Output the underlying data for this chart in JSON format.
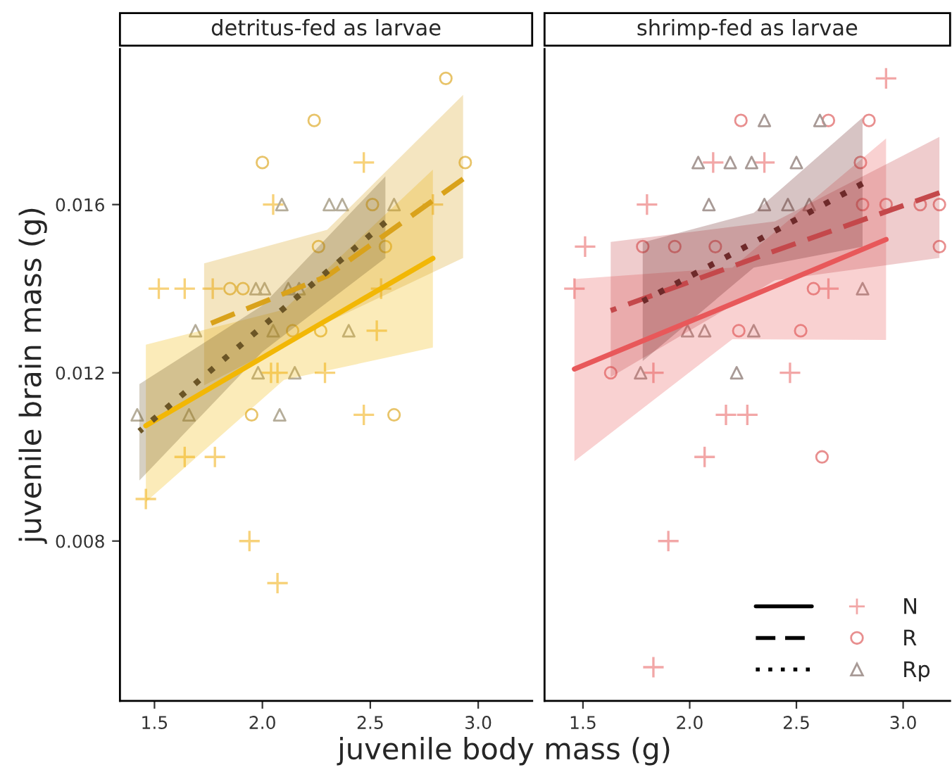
{
  "chart_data": [
    {
      "type": "scatter",
      "title": "detritus-fed as larvae",
      "xlabel": "juvenile body mass (g)",
      "ylabel": "juvenile brain mass (g)",
      "xlim": [
        1.34,
        3.25
      ],
      "ylim": [
        0.0042,
        0.0197
      ],
      "xticks": [
        {
          "value": 1.5,
          "label": "1.5"
        },
        {
          "value": 2.0,
          "label": "2.0"
        },
        {
          "value": 2.5,
          "label": "2.5"
        },
        {
          "value": 3.0,
          "label": "3.0"
        }
      ],
      "yticks": [
        0.008,
        0.012,
        0.016
      ],
      "grid": false,
      "series": [
        {
          "type": "scatter",
          "marker": "cross",
          "color": "#f7d27a",
          "x": [
            2.47,
            2.05,
            1.52,
            1.64,
            1.77,
            2.55,
            2.79,
            2.53,
            2.04,
            2.07,
            2.29,
            2.47,
            1.64,
            1.78,
            1.46,
            1.94,
            2.07
          ],
          "values": [
            0.017,
            0.016,
            0.014,
            0.014,
            0.014,
            0.014,
            0.016,
            0.013,
            0.012,
            0.012,
            0.012,
            0.011,
            0.01,
            0.01,
            0.009,
            0.008,
            0.007
          ]
        },
        {
          "type": "scatter",
          "marker": "circle",
          "color": "#e8c46a",
          "x": [
            2.85,
            2.24,
            2.0,
            2.94,
            2.26,
            1.85,
            1.91,
            2.14,
            2.27,
            2.51,
            2.57,
            1.95,
            2.61
          ],
          "values": [
            0.019,
            0.018,
            0.017,
            0.017,
            0.015,
            0.014,
            0.014,
            0.013,
            0.013,
            0.016,
            0.015,
            0.011,
            0.011
          ]
        },
        {
          "type": "scatter",
          "marker": "triangle",
          "color": "#b5ad9a",
          "x": [
            2.09,
            2.31,
            2.37,
            2.61,
            1.97,
            2.01,
            2.12,
            2.17,
            1.69,
            2.05,
            2.4,
            1.98,
            2.15,
            1.42,
            1.66,
            2.08
          ],
          "values": [
            0.016,
            0.016,
            0.016,
            0.016,
            0.014,
            0.014,
            0.014,
            0.014,
            0.013,
            0.013,
            0.013,
            0.012,
            0.012,
            0.011,
            0.011,
            0.011
          ]
        },
        {
          "type": "line",
          "line_style": "solid",
          "color": "#f2b705",
          "x": [
            1.46,
            2.1,
            2.79
          ],
          "values": [
            0.01074,
            0.01266,
            0.01472
          ],
          "lower": [
            0.00893,
            0.01183,
            0.0126
          ],
          "upper": [
            0.01267,
            0.0135,
            0.01683
          ]
        },
        {
          "type": "line",
          "line_style": "dashed",
          "color": "#d9a21b",
          "x": [
            1.73,
            2.3,
            2.93
          ],
          "values": [
            0.01311,
            0.0143,
            0.01661
          ],
          "lower": [
            0.0117,
            0.0132,
            0.01473
          ],
          "upper": [
            0.0146,
            0.0154,
            0.01861
          ]
        },
        {
          "type": "line",
          "line_style": "dotted",
          "color": "#6b5526",
          "x": [
            1.43,
            2.0,
            2.57
          ],
          "values": [
            0.01061,
            0.0131,
            0.01558
          ],
          "lower": [
            0.00944,
            0.0125,
            0.01473
          ],
          "upper": [
            0.01173,
            0.0136,
            0.01667
          ]
        }
      ]
    },
    {
      "type": "scatter",
      "title": "shrimp-fed as larvae",
      "tick_labels": "x",
      "legend": "bottom right",
      "xlim": [
        1.32,
        3.22
      ],
      "ylim": [
        0.0042,
        0.0197
      ],
      "xticks": [
        {
          "value": 1.5,
          "label": "1.5"
        },
        {
          "value": 2.0,
          "label": "2.0"
        },
        {
          "value": 2.5,
          "label": "2.5"
        },
        {
          "value": 3.0,
          "label": "3.0"
        }
      ],
      "yticks": [
        0.008,
        0.012,
        0.016
      ],
      "grid": false,
      "series": [
        {
          "type": "scatter",
          "name": "N",
          "marker": "cross",
          "color": "#f2a7a7",
          "x": [
            2.92,
            2.11,
            2.35,
            1.8,
            1.51,
            1.46,
            2.65,
            1.83,
            2.47,
            2.17,
            2.27,
            2.07,
            1.9,
            1.83
          ],
          "values": [
            0.019,
            0.017,
            0.017,
            0.016,
            0.015,
            0.014,
            0.014,
            0.012,
            0.012,
            0.011,
            0.011,
            0.01,
            0.008,
            0.005
          ]
        },
        {
          "type": "scatter",
          "name": "R",
          "marker": "circle",
          "color": "#e88f8f",
          "x": [
            2.24,
            2.65,
            2.84,
            2.8,
            2.92,
            3.08,
            3.17,
            2.81,
            1.78,
            1.93,
            2.12,
            3.17,
            2.58,
            1.63,
            2.52,
            2.23,
            2.62
          ],
          "values": [
            0.018,
            0.018,
            0.018,
            0.017,
            0.016,
            0.016,
            0.016,
            0.016,
            0.015,
            0.015,
            0.015,
            0.015,
            0.014,
            0.012,
            0.013,
            0.013,
            0.01
          ]
        },
        {
          "type": "scatter",
          "name": "Rp",
          "marker": "triangle",
          "color": "#a89a96",
          "x": [
            2.35,
            2.61,
            2.04,
            2.19,
            2.29,
            2.5,
            2.09,
            2.35,
            2.46,
            2.56,
            2.81,
            1.99,
            2.07,
            2.3,
            1.77,
            2.22
          ],
          "values": [
            0.018,
            0.018,
            0.017,
            0.017,
            0.017,
            0.017,
            0.016,
            0.016,
            0.016,
            0.016,
            0.014,
            0.013,
            0.013,
            0.013,
            0.012,
            0.012
          ]
        },
        {
          "type": "line",
          "line_style": "solid",
          "color": "#e8585a",
          "x": [
            1.46,
            2.2,
            2.92
          ],
          "values": [
            0.01209,
            0.01364,
            0.01517
          ],
          "lower": [
            0.0099,
            0.0128,
            0.01278
          ],
          "upper": [
            0.01423,
            0.0145,
            0.01757
          ]
        },
        {
          "type": "line",
          "line_style": "dashed",
          "color": "#c4484b",
          "x": [
            1.63,
            2.4,
            3.17
          ],
          "values": [
            0.01348,
            0.0149,
            0.01628
          ],
          "lower": [
            0.0119,
            0.0142,
            0.01473
          ],
          "upper": [
            0.01511,
            0.0156,
            0.01761
          ]
        },
        {
          "type": "line",
          "line_style": "dotted",
          "color": "#6e2a2a",
          "x": [
            1.78,
            2.3,
            2.81
          ],
          "values": [
            0.0137,
            0.0151,
            0.0165
          ],
          "lower": [
            0.01228,
            0.0145,
            0.015
          ],
          "upper": [
            0.0151,
            0.0158,
            0.01807
          ]
        }
      ]
    }
  ]
}
